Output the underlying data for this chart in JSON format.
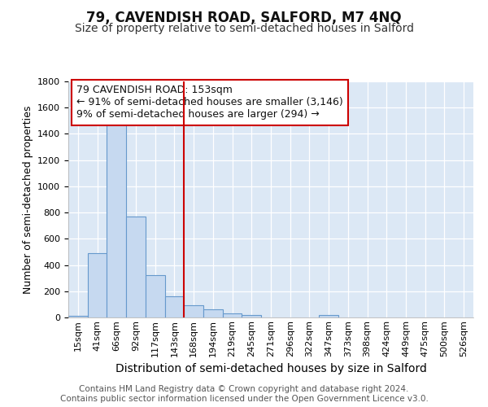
{
  "title": "79, CAVENDISH ROAD, SALFORD, M7 4NQ",
  "subtitle": "Size of property relative to semi-detached houses in Salford",
  "xlabel": "Distribution of semi-detached houses by size in Salford",
  "ylabel": "Number of semi-detached properties",
  "bin_labels": [
    "15sqm",
    "41sqm",
    "66sqm",
    "92sqm",
    "117sqm",
    "143sqm",
    "168sqm",
    "194sqm",
    "219sqm",
    "245sqm",
    "271sqm",
    "296sqm",
    "322sqm",
    "347sqm",
    "373sqm",
    "398sqm",
    "424sqm",
    "449sqm",
    "475sqm",
    "500sqm",
    "526sqm"
  ],
  "bar_heights": [
    15,
    490,
    1500,
    770,
    325,
    160,
    95,
    60,
    30,
    20,
    0,
    0,
    0,
    20,
    0,
    0,
    0,
    0,
    0,
    0,
    0
  ],
  "bar_color": "#c6d9f0",
  "bar_edge_color": "#6699cc",
  "vline_color": "#cc0000",
  "annotation_text": "79 CAVENDISH ROAD: 153sqm\n← 91% of semi-detached houses are smaller (3,146)\n9% of semi-detached houses are larger (294) →",
  "annotation_box_color": "#ffffff",
  "annotation_box_edge": "#cc0000",
  "ylim": [
    0,
    1800
  ],
  "yticks": [
    0,
    200,
    400,
    600,
    800,
    1000,
    1200,
    1400,
    1600,
    1800
  ],
  "footer_text": "Contains HM Land Registry data © Crown copyright and database right 2024.\nContains public sector information licensed under the Open Government Licence v3.0.",
  "bg_color": "#ffffff",
  "plot_bg_color": "#dce8f5",
  "grid_color": "#ffffff",
  "title_fontsize": 12,
  "subtitle_fontsize": 10,
  "xlabel_fontsize": 10,
  "ylabel_fontsize": 9,
  "tick_fontsize": 8,
  "annotation_fontsize": 9,
  "footer_fontsize": 7.5
}
